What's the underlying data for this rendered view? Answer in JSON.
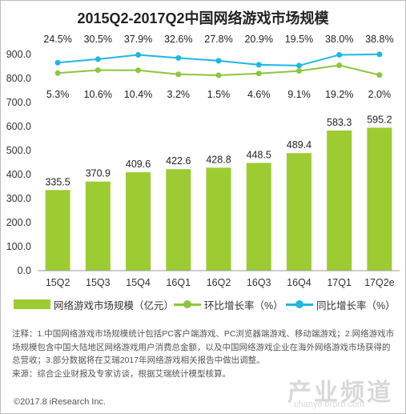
{
  "chart_data": {
    "type": "bar",
    "title": "2015Q2-2017Q2中国网络游戏市场规模",
    "categories": [
      "15Q2",
      "15Q3",
      "15Q4",
      "16Q1",
      "16Q2",
      "16Q3",
      "16Q4",
      "17Q1",
      "17Q2e"
    ],
    "ylim": [
      0,
      900
    ],
    "yticks": [
      "0.0",
      "100.0",
      "200.0",
      "300.0",
      "400.0",
      "500.0",
      "600.0",
      "700.0",
      "800.0",
      "900.0"
    ],
    "grid": false,
    "legend_position": "bottom",
    "series": [
      {
        "name": "网络游戏市场规模（亿元）",
        "type": "bar",
        "color": "#9ccc32",
        "values": [
          335.5,
          370.9,
          409.6,
          422.6,
          428.8,
          448.5,
          489.4,
          583.3,
          595.2
        ],
        "labels": [
          "335.5",
          "370.9",
          "409.6",
          "422.6",
          "428.8",
          "448.5",
          "489.4",
          "583.3",
          "595.2"
        ]
      },
      {
        "name": "环比增长率（%）",
        "type": "line",
        "color": "#8dc63f",
        "values": [
          5.3,
          10.6,
          10.4,
          3.2,
          1.5,
          4.6,
          9.1,
          19.2,
          2.0
        ],
        "labels": [
          "5.3%",
          "10.6%",
          "10.4%",
          "3.2%",
          "1.5%",
          "4.6%",
          "9.1%",
          "19.2%",
          "2.0%"
        ]
      },
      {
        "name": "同比增长率（%）",
        "type": "line",
        "color": "#1fb6e6",
        "values": [
          24.5,
          30.5,
          37.9,
          32.6,
          27.8,
          20.9,
          19.5,
          38.0,
          38.8
        ],
        "labels": [
          "24.5%",
          "30.5%",
          "37.9%",
          "32.6%",
          "27.8%",
          "20.9%",
          "19.5%",
          "38.0%",
          "38.8%"
        ]
      }
    ]
  },
  "notes": [
    "注释：1.中国网络游戏市场规模统计包括PC客户端游戏、PC浏览器端游戏、移动端游戏；2.网络游戏市场规模包含中国大陆地区网络游戏用户消费总金额，以及中国网络游戏企业在海外网络游戏市场获得的总营收；3.部分数据将在艾瑞2017年网络游戏相关报告中做出调整。",
    "来源：综合企业财报及专家访谈，根据艾瑞统计模型核算。"
  ],
  "footer": {
    "copyright": "©2017.8 iResearch Inc.",
    "watermark_text": "产业频道",
    "watermark_url": "chanye.ororo.com"
  }
}
